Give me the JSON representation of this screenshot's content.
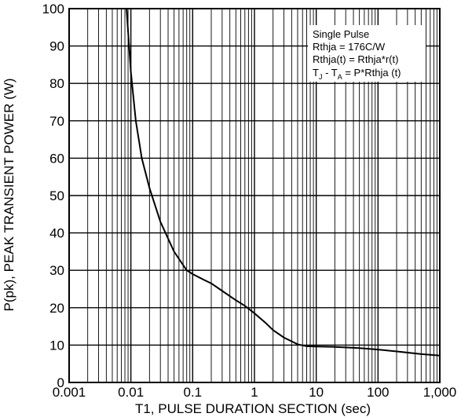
{
  "chart_data": {
    "type": "line",
    "x_scale": "log",
    "xlim": [
      0.001,
      1000
    ],
    "ylim": [
      0,
      100
    ],
    "grid": true,
    "xlabel": "T1, PULSE DURATION SECTION (sec)",
    "ylabel": "P(pk), PEAK TRANSIENT POWER (W)",
    "x_tick_values": [
      0.001,
      0.01,
      0.1,
      1,
      10,
      100,
      1000
    ],
    "x_tick_labels": [
      "0.001",
      "0.01",
      "0.1",
      "1",
      "10",
      "100",
      "1,000"
    ],
    "y_ticks": [
      0,
      10,
      20,
      30,
      40,
      50,
      60,
      70,
      80,
      90,
      100
    ],
    "annotation": {
      "line1": "Single Pulse",
      "line2": "Rthja = 176C/W",
      "line3": "Rthja(t) = Rthja*r(t)",
      "line4_a": "T",
      "line4_sub1": "J",
      "line4_b": " - T",
      "line4_sub2": "A",
      "line4_c": " = P*Rthja (t)"
    },
    "series": [
      {
        "x": [
          0.0085,
          0.01,
          0.012,
          0.015,
          0.02,
          0.03,
          0.05,
          0.08,
          0.1,
          0.15,
          0.2,
          0.3,
          0.5,
          0.7,
          1,
          1.5,
          2,
          3,
          4,
          5,
          7,
          10,
          20,
          50,
          100,
          200,
          500,
          1000
        ],
        "y": [
          100,
          83,
          70,
          60,
          52,
          43,
          35,
          30,
          29,
          27.5,
          26.5,
          24.5,
          22,
          20.5,
          18.5,
          16,
          14,
          12,
          11,
          10.2,
          9.7,
          9.6,
          9.5,
          9.2,
          8.8,
          8.3,
          7.6,
          7.2
        ]
      }
    ]
  }
}
